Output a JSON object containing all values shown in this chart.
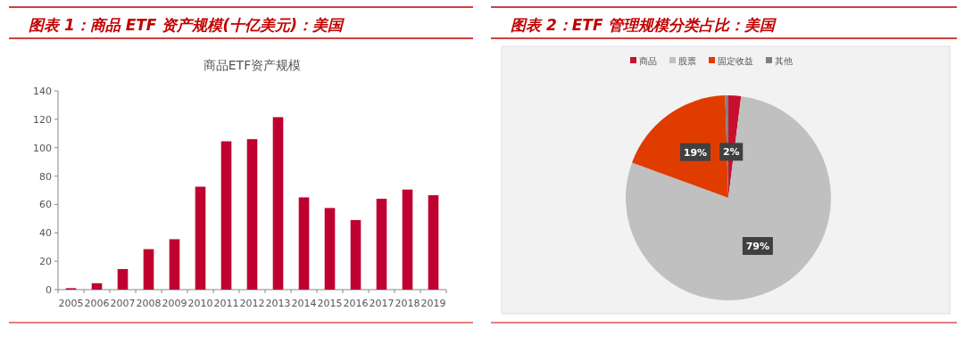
{
  "chart_data": [
    {
      "type": "bar",
      "title": "图表 1：商品 ETF 资产规模(十亿美元)：美国",
      "subtitle": "商品ETF资产规模",
      "categories": [
        "2005",
        "2006",
        "2007",
        "2008",
        "2009",
        "2010",
        "2011",
        "2012",
        "2013",
        "2014",
        "2015",
        "2016",
        "2017",
        "2018",
        "2019"
      ],
      "values": [
        1,
        4.5,
        14.5,
        28.5,
        35.5,
        72.5,
        104.5,
        106,
        121.5,
        65,
        57.5,
        49,
        64,
        70.5,
        66.5
      ],
      "color": "#c00030",
      "ylim": [
        0,
        140
      ],
      "yticks": [
        0,
        20,
        40,
        60,
        80,
        100,
        120,
        140
      ],
      "grid": false
    },
    {
      "type": "pie",
      "title": "图表 2：ETF 管理规模分类占比：美国",
      "categories": [
        "商品",
        "股票",
        "固定收益",
        "其他"
      ],
      "values": [
        2,
        79,
        19,
        0.5
      ],
      "value_labels": [
        "2%",
        "79%",
        "19%",
        null
      ],
      "colors": [
        "#c8102e",
        "#c0c0c0",
        "#e03c00",
        "#808080"
      ],
      "legend": "top"
    }
  ]
}
